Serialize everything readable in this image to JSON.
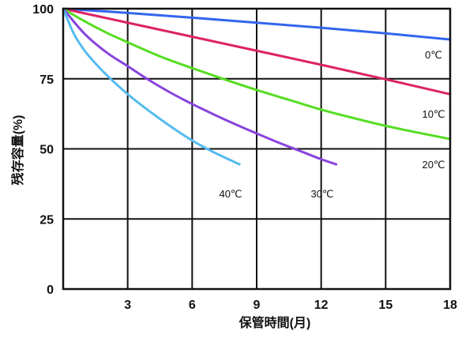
{
  "chart_data": {
    "type": "line",
    "xlabel": "保管時間(月)",
    "ylabel": "残存容量(%)",
    "xlim": [
      0,
      18
    ],
    "ylim": [
      0,
      100
    ],
    "x_ticks": [
      3,
      6,
      9,
      12,
      15,
      18
    ],
    "y_ticks": [
      0,
      25,
      50,
      75,
      100
    ],
    "grid": true,
    "series": [
      {
        "name": "0℃",
        "color": "#3366ee",
        "x": [
          0,
          3,
          6,
          9,
          12,
          15,
          18
        ],
        "y": [
          100,
          98.5,
          96.8,
          95.0,
          93.2,
          91.2,
          89.0
        ]
      },
      {
        "name": "10℃",
        "color": "#dd2266",
        "x": [
          0,
          3,
          6,
          9,
          12,
          15,
          18
        ],
        "y": [
          100,
          95.0,
          90.0,
          85.0,
          80.0,
          74.8,
          69.5
        ]
      },
      {
        "name": "20℃",
        "color": "#55dd22",
        "x": [
          0,
          1,
          2,
          3,
          4.5,
          6,
          7.5,
          9,
          10.5,
          12,
          13.5,
          15,
          16.5,
          18
        ],
        "y": [
          100,
          95.5,
          91.5,
          88.0,
          83.0,
          78.8,
          74.8,
          71.0,
          67.5,
          64.0,
          61.0,
          58.2,
          55.8,
          53.5
        ]
      },
      {
        "name": "30℃",
        "color": "#8844dd",
        "x": [
          0,
          1,
          2,
          3,
          4,
          5,
          6,
          7,
          8,
          9,
          10,
          11,
          12,
          12.7
        ],
        "y": [
          100,
          91.0,
          84.5,
          79.5,
          74.5,
          70.0,
          66.0,
          62.3,
          58.8,
          55.5,
          52.3,
          49.3,
          46.3,
          44.5
        ]
      },
      {
        "name": "40℃",
        "color": "#55bbee",
        "x": [
          0,
          0.5,
          1,
          1.5,
          2,
          3,
          4,
          5,
          6,
          7,
          8.2
        ],
        "y": [
          100,
          91.0,
          85.0,
          80.5,
          76.5,
          69.5,
          63.5,
          58.0,
          53.0,
          48.8,
          44.5
        ]
      }
    ]
  }
}
